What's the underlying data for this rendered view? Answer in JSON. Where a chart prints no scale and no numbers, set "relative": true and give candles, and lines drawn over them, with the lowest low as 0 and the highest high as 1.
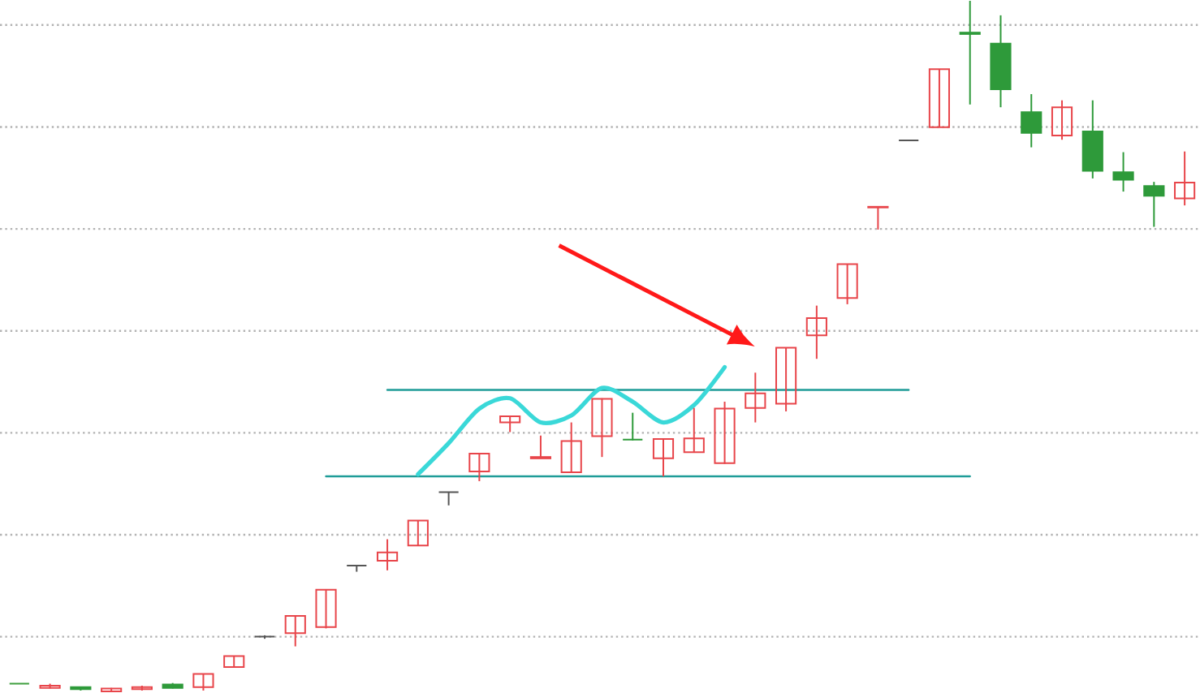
{
  "chart_data": {
    "type": "candlestick",
    "relative": true,
    "grid": "y",
    "categories": [
      null,
      null,
      null,
      null,
      null,
      null,
      null,
      null,
      null,
      null,
      null,
      null,
      null,
      null,
      null,
      null,
      null,
      null,
      null,
      null,
      null,
      null,
      null,
      null,
      null,
      null,
      null,
      null,
      null,
      null,
      null,
      null,
      null,
      null,
      null,
      null,
      null,
      null,
      null
    ],
    "ohlc": [
      [
        0.012,
        0.012,
        0.012,
        0.012
      ],
      [
        0.006,
        0.012,
        0.005,
        0.009
      ],
      [
        0.007,
        0.007,
        0.002,
        0.004
      ],
      [
        0.001,
        0.006,
        0,
        0.005
      ],
      [
        0.004,
        0.009,
        0.002,
        0.007
      ],
      [
        0.011,
        0.013,
        0.005,
        0.006
      ],
      [
        0.007,
        0.026,
        0.002,
        0.026
      ],
      [
        0.036,
        0.052,
        0.035,
        0.052
      ],
      [
        0.08,
        0.082,
        0.077,
        0.08
      ],
      [
        0.085,
        0.11,
        0.066,
        0.11
      ],
      [
        0.094,
        0.148,
        0.092,
        0.148
      ],
      [
        0.183,
        0.183,
        0.174,
        0.183
      ],
      [
        0.19,
        0.221,
        0.176,
        0.202
      ],
      [
        0.212,
        0.248,
        0.211,
        0.248
      ],
      [
        0.289,
        0.289,
        0.27,
        0.289
      ],
      [
        0.319,
        0.345,
        0.305,
        0.345
      ],
      [
        0.39,
        0.399,
        0.376,
        0.399
      ],
      [
        0.338,
        0.371,
        0.338,
        0.34
      ],
      [
        0.318,
        0.39,
        0.317,
        0.363
      ],
      [
        0.37,
        0.425,
        0.34,
        0.424
      ],
      [
        0.365,
        0.404,
        0.364,
        0.365
      ],
      [
        0.338,
        0.366,
        0.312,
        0.366
      ],
      [
        0.347,
        0.411,
        0.346,
        0.367
      ],
      [
        0.331,
        0.42,
        0.33,
        0.41
      ],
      [
        0.411,
        0.462,
        0.39,
        0.432
      ],
      [
        0.417,
        0.498,
        0.406,
        0.498
      ],
      [
        0.516,
        0.559,
        0.482,
        0.541
      ],
      [
        0.57,
        0.619,
        0.561,
        0.619
      ],
      [
        0.701,
        0.702,
        0.669,
        0.702
      ],
      [
        0.798,
        0.798,
        0.798,
        0.798
      ],
      [
        0.817,
        0.901,
        0.817,
        0.901
      ],
      [
        0.954,
        1,
        0.85,
        0.952
      ],
      [
        0.938,
        0.979,
        0.846,
        0.872
      ],
      [
        0.839,
        0.865,
        0.788,
        0.809
      ],
      [
        0.805,
        0.856,
        0.799,
        0.846
      ],
      [
        0.811,
        0.856,
        0.743,
        0.754
      ],
      [
        0.752,
        0.781,
        0.724,
        0.741
      ],
      [
        0.732,
        0.738,
        0.673,
        0.718
      ],
      [
        0.714,
        0.782,
        0.704,
        0.737
      ]
    ],
    "colors": [
      "#3f9f3f",
      "#e8454a",
      "#2e9a3a",
      "#e8454a",
      "#e8454a",
      "#2e9a3a",
      "#e8454a",
      "#e8454a",
      "#555555",
      "#e8454a",
      "#e8454a",
      "#555555",
      "#e8454a",
      "#e8454a",
      "#555555",
      "#e8454a",
      "#e8454a",
      "#e8454a",
      "#e8454a",
      "#e8454a",
      "#2e9a3a",
      "#e8454a",
      "#e8454a",
      "#e8454a",
      "#e8454a",
      "#e8454a",
      "#e8454a",
      "#e8454a",
      "#e8454a",
      "#555555",
      "#e8454a",
      "#2e9a3a",
      "#2e9a3a",
      "#2e9a3a",
      "#e8454a",
      "#2e9a3a",
      "#2e9a3a",
      "#2e9a3a",
      "#e8454a"
    ],
    "series": [
      {
        "type": "line",
        "color": "#1f9c98",
        "values": [
          null,
          null,
          null,
          null,
          null,
          null,
          null,
          null,
          null,
          null,
          null,
          null,
          0.437,
          0.437,
          0.437,
          0.437,
          0.437,
          0.437,
          0.437,
          0.437,
          0.437,
          0.437,
          0.437,
          0.437,
          0.437,
          0.437,
          0.437,
          0.437,
          0.437,
          0.437,
          null,
          null,
          null,
          null,
          null,
          null,
          null,
          null,
          null
        ]
      },
      {
        "type": "line",
        "color": "#1f9c98",
        "values": [
          null,
          null,
          null,
          null,
          null,
          null,
          null,
          null,
          null,
          null,
          0.312,
          0.312,
          0.312,
          0.312,
          0.312,
          0.312,
          0.312,
          0.312,
          0.312,
          0.312,
          0.312,
          0.312,
          0.312,
          0.312,
          0.312,
          0.312,
          0.312,
          0.312,
          0.312,
          0.312,
          0.312,
          0.312,
          null,
          null,
          null,
          null,
          null,
          null,
          null
        ]
      },
      {
        "type": "line",
        "color": "#3ad8d8",
        "values": [
          null,
          null,
          null,
          null,
          null,
          null,
          null,
          null,
          null,
          null,
          null,
          null,
          null,
          0.315,
          0.36,
          0.41,
          0.425,
          0.39,
          0.4,
          0.44,
          0.42,
          0.39,
          0.415,
          0.47,
          null,
          null,
          null,
          null,
          null,
          null,
          null,
          null,
          null,
          null,
          null,
          null,
          null,
          null,
          null
        ]
      }
    ]
  }
}
